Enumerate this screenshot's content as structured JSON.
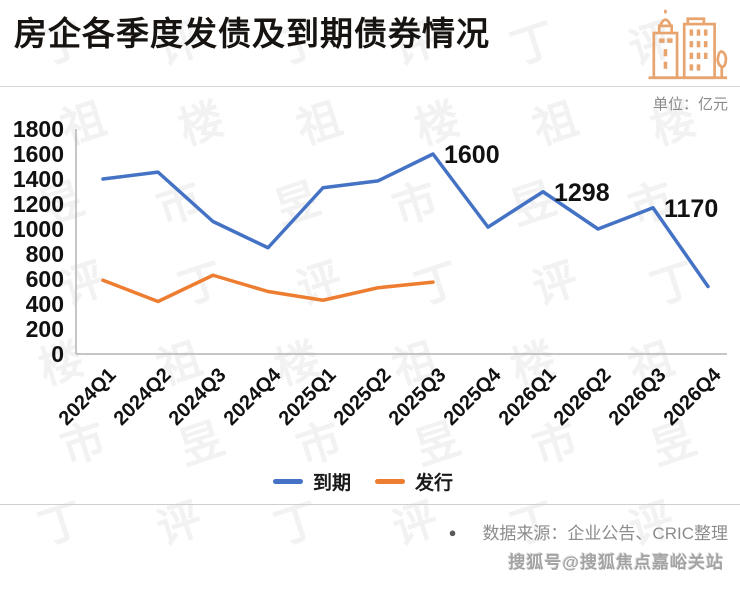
{
  "header": {
    "title": "房企各季度发债及到期债券情况"
  },
  "unit_label": "单位：亿元",
  "chart_data": {
    "type": "line",
    "title": "房企各季度发债及到期债券情况",
    "unit": "亿元",
    "categories": [
      "2024Q1",
      "2024Q2",
      "2024Q3",
      "2024Q4",
      "2025Q1",
      "2025Q2",
      "2025Q3",
      "2025Q4",
      "2026Q1",
      "2026Q2",
      "2026Q3",
      "2026Q4"
    ],
    "series": [
      {
        "name": "到期",
        "color": "#4472C4",
        "values": [
          1400,
          1455,
          1060,
          850,
          1330,
          1385,
          1600,
          1015,
          1298,
          1000,
          1170,
          540
        ]
      },
      {
        "name": "发行",
        "color": "#ED7D31",
        "values": [
          590,
          420,
          630,
          500,
          430,
          530,
          575,
          null,
          null,
          null,
          null,
          null
        ]
      }
    ],
    "annotations": [
      {
        "series": 0,
        "index": 6,
        "label": "1600"
      },
      {
        "series": 0,
        "index": 8,
        "label": "1298"
      },
      {
        "series": 0,
        "index": 10,
        "label": "1170"
      }
    ],
    "ylim": [
      0,
      1800
    ],
    "y_tick_step": 200,
    "grid": false,
    "legend_position": "bottom"
  },
  "legend": {
    "items": [
      {
        "label": "到期",
        "color": "#4472C4"
      },
      {
        "label": "发行",
        "color": "#ED7D31"
      }
    ]
  },
  "footer": {
    "bullet": "●",
    "source": "数据来源：企业公告、CRIC整理",
    "watermark": "搜狐号@搜狐焦点嘉峪关站"
  },
  "background_watermark": {
    "text": "丁祖昱评楼市"
  },
  "icon_colors": {
    "building_outline": "#E8A46E"
  }
}
